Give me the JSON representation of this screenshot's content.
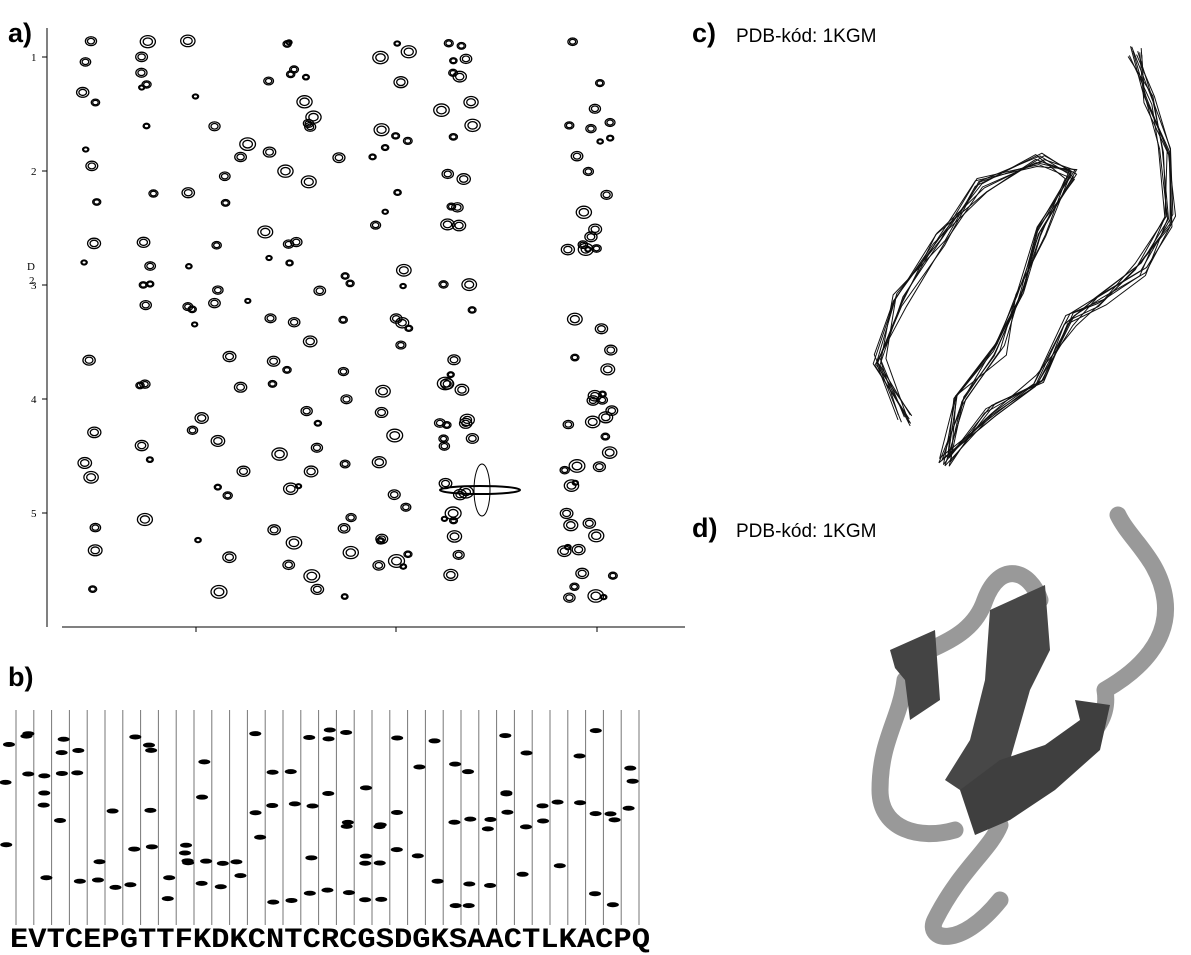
{
  "panels": {
    "a": {
      "label": "a)",
      "yticks": [
        "1",
        "2",
        "3",
        "4",
        "5"
      ],
      "axis_label": [
        "D",
        "2"
      ]
    },
    "b": {
      "label": "b)",
      "sequence": "EVTCEPGTTFKDKCNTCRCGSDGKSAACTLKACPQ"
    },
    "c": {
      "label": "c)",
      "caption": "PDB-kód: 1KGM"
    },
    "d": {
      "label": "d)",
      "caption": "PDB-kód: 1KGM"
    }
  }
}
